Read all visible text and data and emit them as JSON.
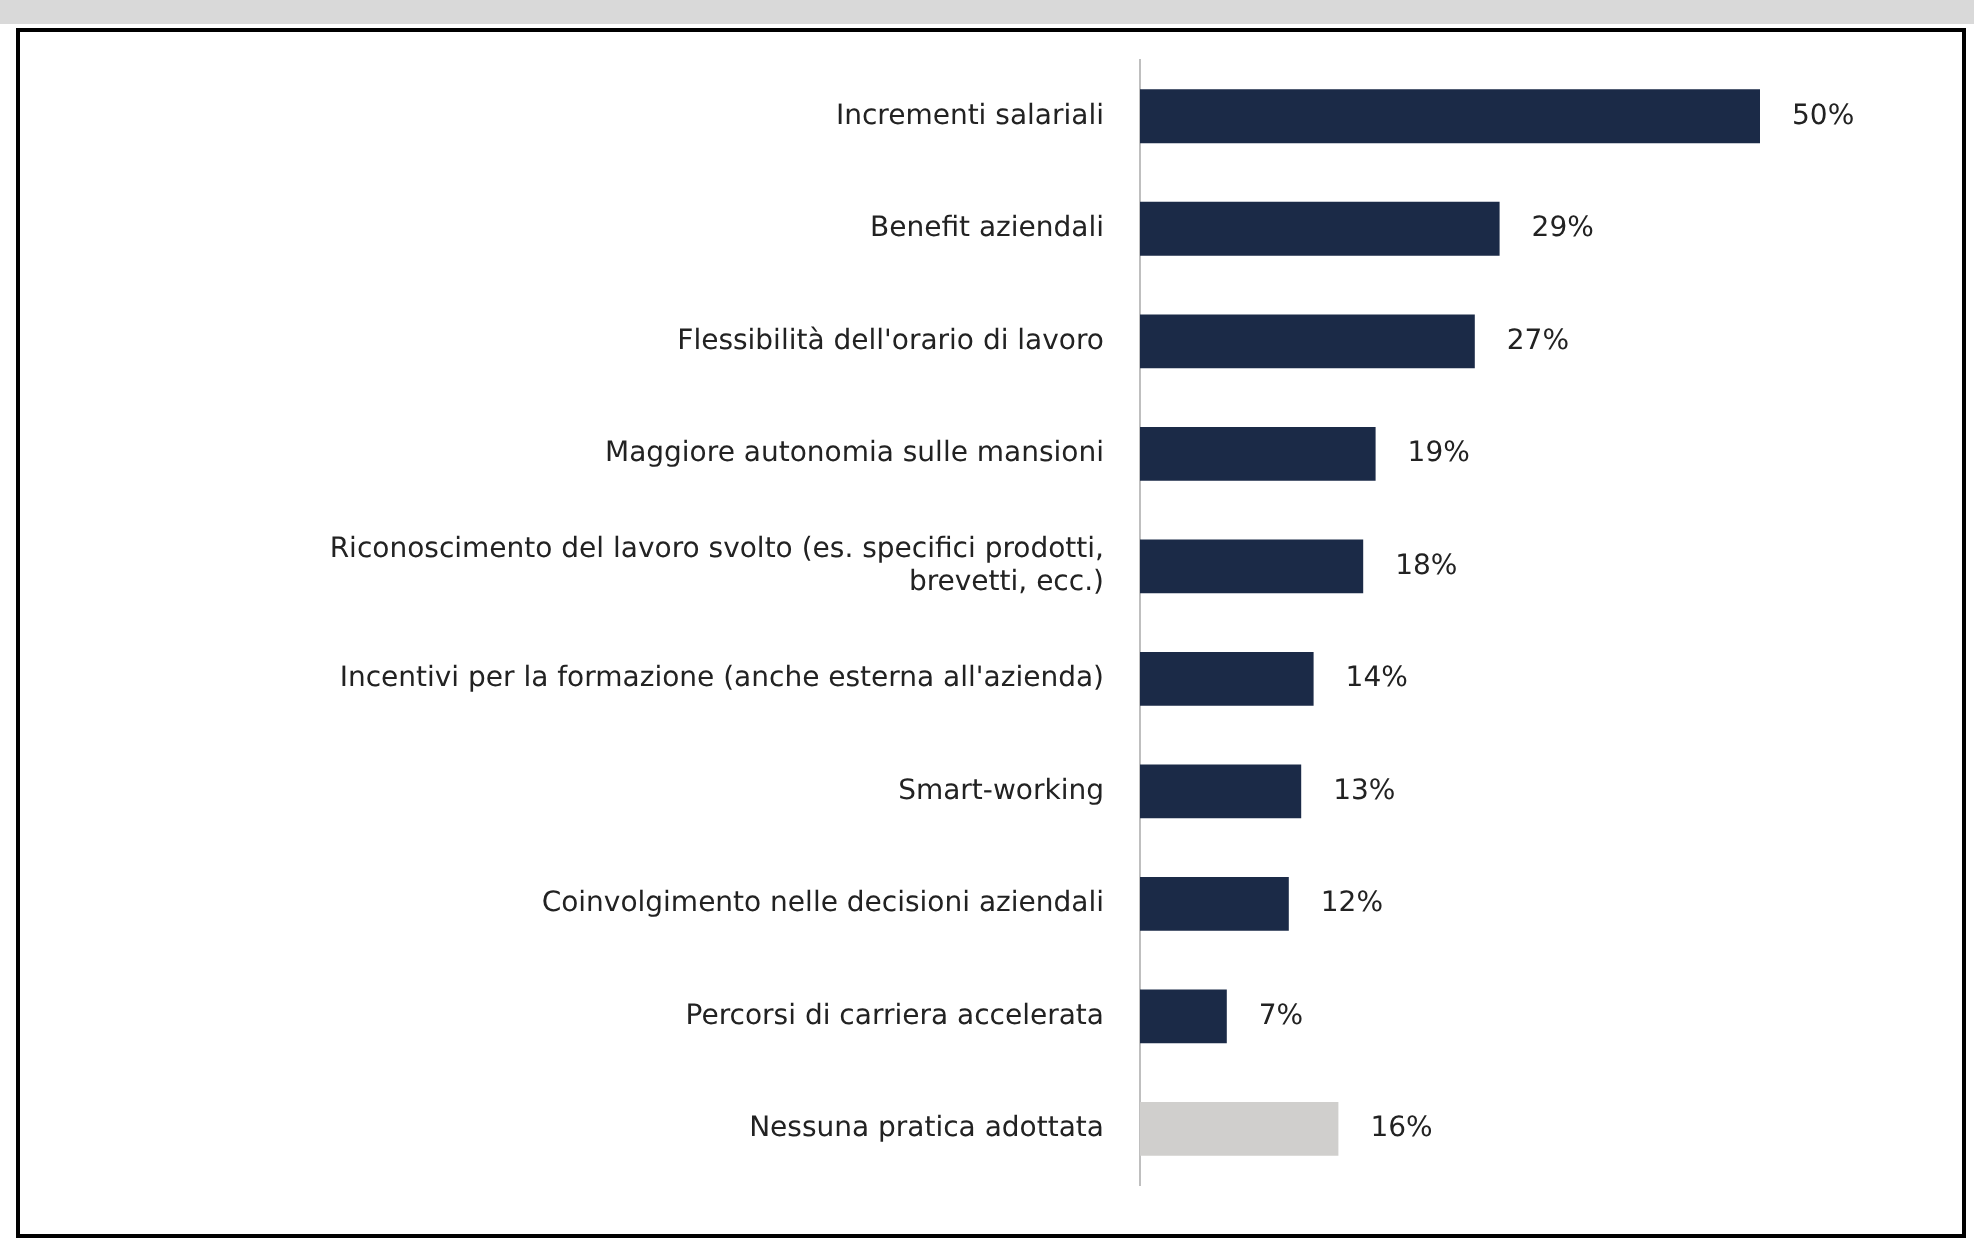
{
  "chart_data": {
    "type": "bar",
    "orientation": "horizontal",
    "categories": [
      "Incrementi salariali",
      "Benefit aziendali",
      "Flessibilità dell'orario di lavoro",
      "Maggiore autonomia sulle mansioni",
      "Riconoscimento del lavoro svolto (es. specifici prodotti, brevetti, ecc.)",
      "Incentivi per la formazione (anche esterna all'azienda)",
      "Smart-working",
      "Coinvolgimento nelle decisioni aziendali",
      "Percorsi di carriera accelerata",
      "Nessuna pratica adottata"
    ],
    "values": [
      50,
      29,
      27,
      19,
      18,
      14,
      13,
      12,
      7,
      16
    ],
    "colors": [
      "#1b2a47",
      "#1b2a47",
      "#1b2a47",
      "#1b2a47",
      "#1b2a47",
      "#1b2a47",
      "#1b2a47",
      "#1b2a47",
      "#1b2a47",
      "#d0cfcd"
    ],
    "value_labels": [
      "50%",
      "29%",
      "27%",
      "19%",
      "18%",
      "14%",
      "13%",
      "12%",
      "7%",
      "16%"
    ],
    "tick_labels": "y",
    "grid": false,
    "legend": false
  }
}
